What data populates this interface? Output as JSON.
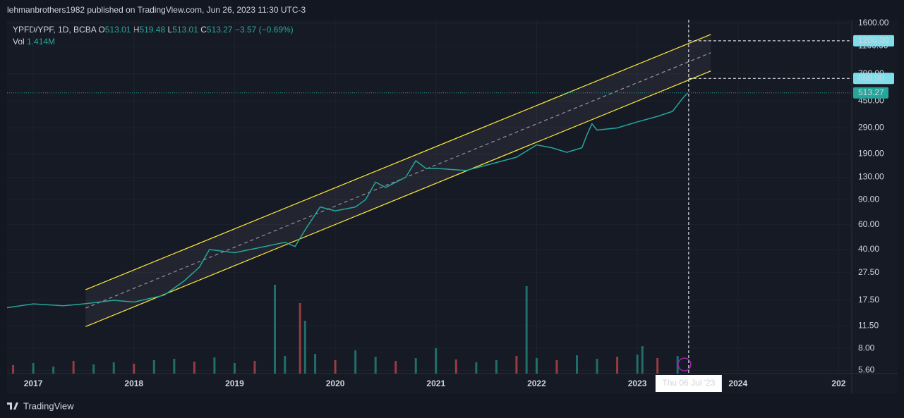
{
  "header": {
    "publisher": "lehmanbrothers1982 published on TradingView.com, Jun 26, 2023 11:30 UTC-3"
  },
  "legend": {
    "symbol": "YPFD/YPF, 1D, BCBA",
    "o_label": "O",
    "o": "513.01",
    "h_label": "H",
    "h": "519.48",
    "l_label": "L",
    "l": "513.01",
    "c_label": "C",
    "c": "513.27",
    "change": "−3.57 (−0.69%)",
    "vol_label": "Vol",
    "vol": "1.414M"
  },
  "footer": {
    "brand": "TradingView"
  },
  "chart_data": {
    "type": "line",
    "log_scale": true,
    "grid": true,
    "xlim": [
      2016.74,
      2025.13
    ],
    "xticks": [
      2017,
      2018,
      2019,
      2020,
      2021,
      2022,
      2023,
      2024,
      {
        "value": 2025,
        "label": "202"
      }
    ],
    "ylim": [
      5.3,
      1690
    ],
    "yticks": [
      {
        "value": 5.6,
        "label": "5.60"
      },
      {
        "value": 8,
        "label": "8.00"
      },
      {
        "value": 11.5,
        "label": "11.50"
      },
      {
        "value": 17.5,
        "label": "17.50"
      },
      {
        "value": 27.5,
        "label": "27.50"
      },
      {
        "value": 40,
        "label": "40.00"
      },
      {
        "value": 60,
        "label": "60.00"
      },
      {
        "value": 90,
        "label": "90.00"
      },
      {
        "value": 130,
        "label": "130.00"
      },
      {
        "value": 190,
        "label": "190.00"
      },
      {
        "value": 290,
        "label": "290.00"
      },
      {
        "value": 450,
        "label": "450.00"
      },
      {
        "value": 700,
        "label": "700.00"
      },
      {
        "value": 1100,
        "label": "1100.00"
      },
      {
        "value": 1600,
        "label": "1600.00"
      }
    ],
    "series": [
      {
        "name": "YPFD/YPF",
        "color": "#26a69a",
        "x": [
          2016.74,
          2017.0,
          2017.3,
          2017.5,
          2017.8,
          2018.0,
          2018.3,
          2018.5,
          2018.65,
          2018.75,
          2019.0,
          2019.3,
          2019.5,
          2019.6,
          2019.7,
          2019.85,
          2020.0,
          2020.2,
          2020.3,
          2020.4,
          2020.5,
          2020.7,
          2020.8,
          2020.9,
          2021.0,
          2021.3,
          2021.6,
          2021.8,
          2022.0,
          2022.15,
          2022.3,
          2022.45,
          2022.5,
          2022.55,
          2022.6,
          2022.8,
          2023.0,
          2023.2,
          2023.35,
          2023.45,
          2023.5
        ],
        "values": [
          15.5,
          16.5,
          16,
          16.5,
          17.5,
          17,
          19,
          24,
          30,
          40,
          38,
          42,
          45,
          42,
          55,
          80,
          75,
          80,
          90,
          120,
          110,
          130,
          170,
          150,
          150,
          145,
          165,
          180,
          220,
          210,
          195,
          210,
          260,
          310,
          280,
          290,
          320,
          350,
          380,
          470,
          513.27
        ]
      }
    ],
    "volume": {
      "color": "#26a69a",
      "x": [
        2016.8,
        2017.0,
        2017.2,
        2017.4,
        2017.6,
        2017.8,
        2018.0,
        2018.2,
        2018.4,
        2018.6,
        2018.8,
        2019.0,
        2019.2,
        2019.4,
        2019.5,
        2019.65,
        2019.7,
        2019.8,
        2020.0,
        2020.2,
        2020.4,
        2020.6,
        2020.8,
        2021.0,
        2021.2,
        2021.4,
        2021.6,
        2021.8,
        2021.9,
        2022.0,
        2022.2,
        2022.4,
        2022.6,
        2022.8,
        2023.0,
        2023.05,
        2023.2,
        2023.4
      ],
      "values": [
        1.2,
        1.5,
        1.0,
        1.8,
        1.3,
        1.6,
        1.4,
        1.9,
        2.1,
        1.7,
        2.3,
        1.5,
        1.8,
        12.6,
        2.5,
        10,
        7.5,
        2.8,
        1.9,
        3.3,
        2.4,
        1.8,
        2.2,
        3.6,
        2.0,
        1.6,
        1.9,
        2.5,
        12.4,
        2.2,
        1.9,
        2.6,
        2.1,
        2.4,
        2.7,
        3.9,
        2.2,
        2.5
      ]
    },
    "channel": {
      "color": "#ffeb3b",
      "x": [
        2017.52,
        2023.73
      ],
      "upper": [
        20.8,
        1331
      ],
      "middle": [
        15.4,
        988
      ],
      "lower": [
        11.4,
        733
      ]
    },
    "markers": [
      {
        "value": 1200,
        "label": "1200.00"
      },
      {
        "value": 650,
        "label": "650.00"
      }
    ],
    "last_price": {
      "value": 513.27,
      "label": "513.27"
    },
    "crosshair": {
      "x": 2023.51,
      "label": "Thu 06 Jul '23"
    }
  }
}
